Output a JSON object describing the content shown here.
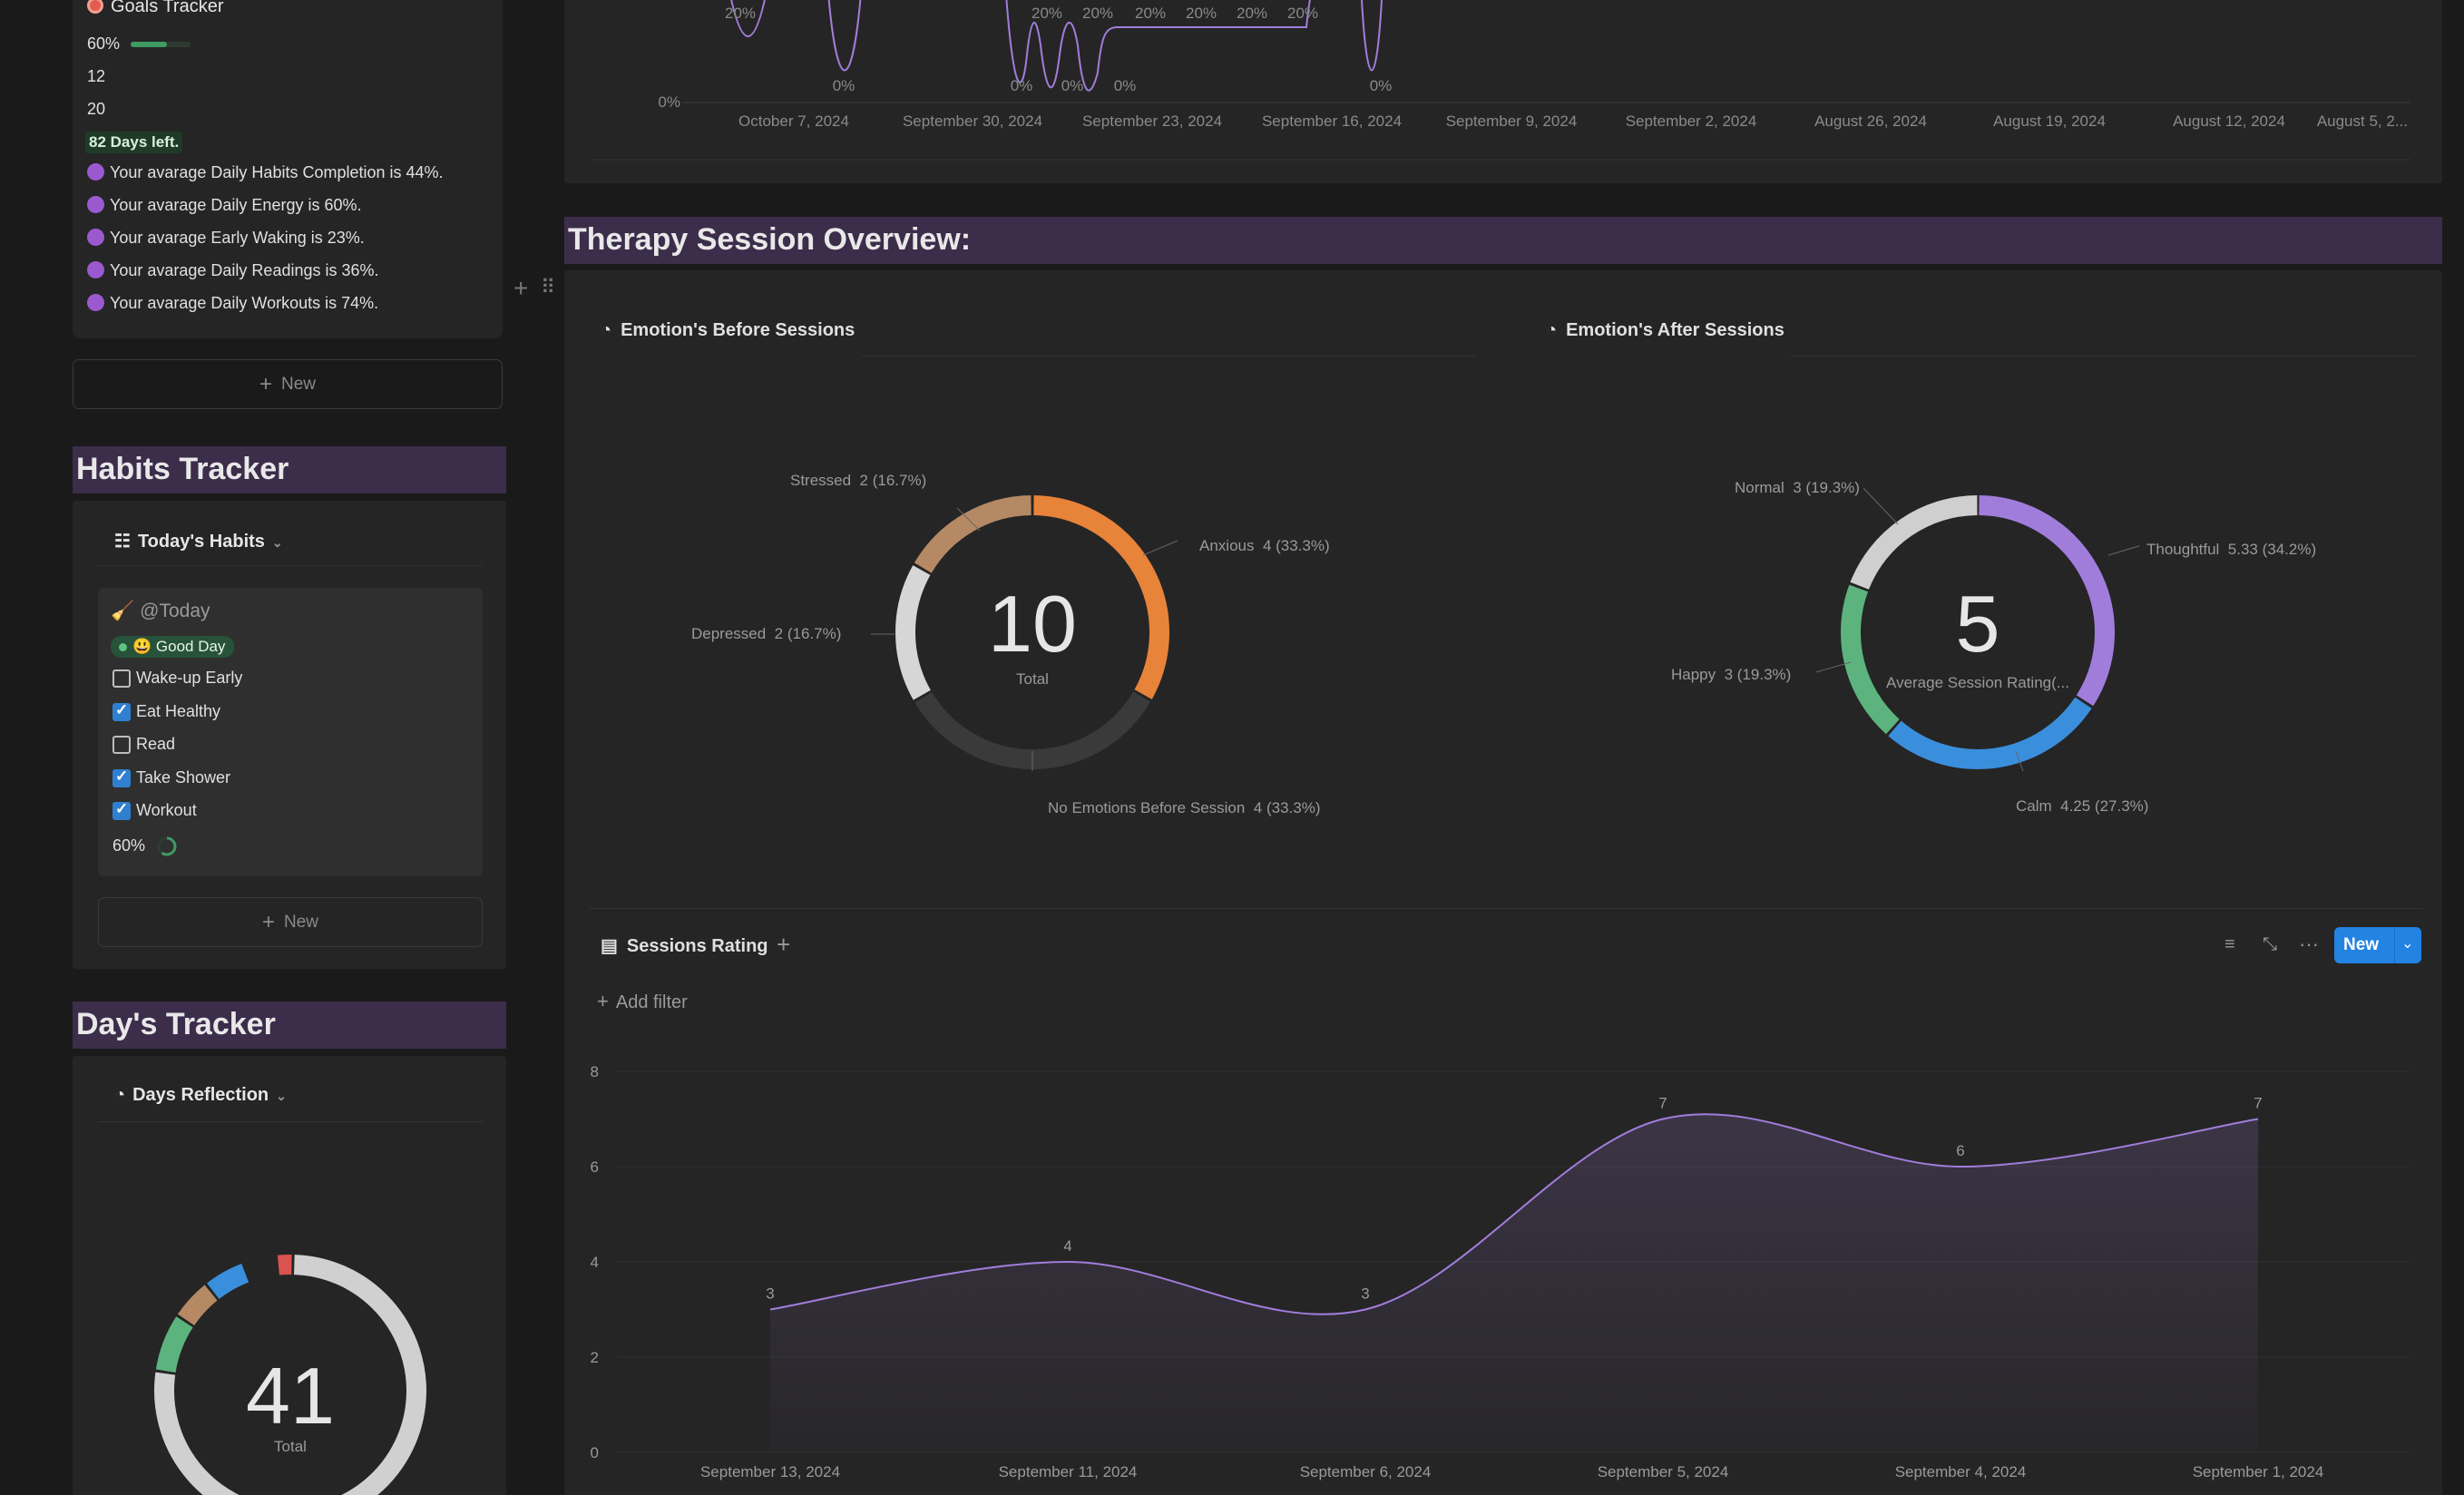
{
  "goals": {
    "title": "Goals Tracker",
    "progress_label": "60%",
    "progress_value": 0.6,
    "value1": "12",
    "value2": "20",
    "days_left": "82 Days left.",
    "stats": [
      "Your avarage Daily Habits Completion is 44%.",
      "Your avarage Daily Energy is 60%.",
      "Your avarage Early Waking is 23%.",
      "Your avarage Daily Readings is 36%.",
      "Your avarage Daily Workouts is 74%."
    ],
    "new_label": "New"
  },
  "habits": {
    "header": "Habits Tracker",
    "view_title": "Today's Habits",
    "card_title": "@Today",
    "mood_tag": "😃 Good Day",
    "items": [
      {
        "label": "Wake-up Early",
        "checked": false
      },
      {
        "label": "Eat Healthy",
        "checked": true
      },
      {
        "label": "Read",
        "checked": false
      },
      {
        "label": "Take Shower",
        "checked": true
      },
      {
        "label": "Workout",
        "checked": true
      }
    ],
    "progress_label": "60%",
    "progress_value": 0.6,
    "new_label": "New"
  },
  "days": {
    "header": "Day's Tracker",
    "view_title": "Days Reflection",
    "total": "41",
    "total_label": "Total",
    "colors": [
      "#d0d0d0",
      "#5cb37e",
      "#b58964",
      "#3a8fdc",
      "#d9534f"
    ]
  },
  "top_chart": {
    "y_tick": "0%",
    "x_labels": [
      "October 7, 2024",
      "September 30, 2024",
      "September 23, 2024",
      "September 16, 2024",
      "September 9, 2024",
      "September 2, 2024",
      "August 26, 2024",
      "August 19, 2024",
      "August 12, 2024",
      "August 5, 2..."
    ],
    "point_labels": [
      "20%",
      "0%",
      "20%",
      "0%",
      "20%",
      "0%",
      "20%",
      "20%",
      "20%",
      "20%",
      "0%"
    ]
  },
  "therapy": {
    "header": "Therapy Session Overview:",
    "before": {
      "title": "Emotion's Before Sessions",
      "center": "10",
      "center_label": "Total",
      "slices": [
        {
          "label": "Anxious",
          "value": "4 (33.3%)",
          "share": 0.333,
          "color": "#e8833a"
        },
        {
          "label": "No Emotions Before Session",
          "value": "4 (33.3%)",
          "share": 0.333,
          "color": "#3a3a3a"
        },
        {
          "label": "Depressed",
          "value": "2 (16.7%)",
          "share": 0.167,
          "color": "#d6d6d6"
        },
        {
          "label": "Stressed",
          "value": "2 (16.7%)",
          "share": 0.167,
          "color": "#b58964"
        }
      ]
    },
    "after": {
      "title": "Emotion's After Sessions",
      "center": "5",
      "center_label": "Average Session Rating(...",
      "slices": [
        {
          "label": "Thoughtful",
          "value": "5.33 (34.2%)",
          "share": 0.342,
          "color": "#a17ddb"
        },
        {
          "label": "Calm",
          "value": "4.25 (27.3%)",
          "share": 0.273,
          "color": "#3a8fdc"
        },
        {
          "label": "Happy",
          "value": "3 (19.3%)",
          "share": 0.193,
          "color": "#5cb37e"
        },
        {
          "label": "Normal",
          "value": "3 (19.3%)",
          "share": 0.193,
          "color": "#cfcfcf"
        }
      ]
    }
  },
  "sessions": {
    "title": "Sessions Rating",
    "add_filter": "Add filter",
    "new_label": "New",
    "chart_data": {
      "type": "area",
      "categories": [
        "September 13, 2024",
        "September 11, 2024",
        "September 6, 2024",
        "September 5, 2024",
        "September 4, 2024",
        "September 1, 2024"
      ],
      "values": [
        3,
        4,
        3,
        7,
        6,
        7
      ],
      "ylim": [
        0,
        8
      ],
      "yticks": [
        0,
        2,
        4,
        6,
        8
      ],
      "color": "#a17ddb"
    }
  }
}
